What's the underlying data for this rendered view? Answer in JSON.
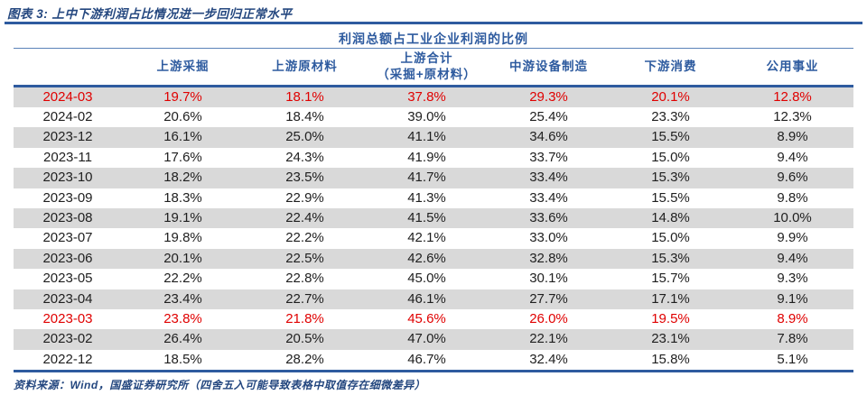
{
  "figure": {
    "title": "图表 3: 上中下游利润占比情况进一步回归正常水平",
    "source": "资料来源：Wind，国盛证券研究所（四舍五入可能导致表格中取值存在细微差异）"
  },
  "colors": {
    "accent_blue": "#2e5b9f",
    "title_blue": "#24477f",
    "highlight_red": "#e00000",
    "zebra_gray": "#d9d9d9",
    "body_text": "#1f1f1f"
  },
  "chart_data": {
    "type": "table",
    "title": "利润总额占工业企业利润的比例",
    "columns": [
      "",
      "上游采掘",
      "上游原材料",
      "上游合计\n（采掘+原材料）",
      "中游设备制造",
      "下游消费",
      "公用事业"
    ],
    "rows": [
      {
        "date": "2024-03",
        "values": [
          "19.7%",
          "18.1%",
          "37.8%",
          "29.3%",
          "20.1%",
          "12.8%"
        ],
        "red": true
      },
      {
        "date": "2024-02",
        "values": [
          "20.6%",
          "18.4%",
          "39.0%",
          "25.4%",
          "23.3%",
          "12.3%"
        ],
        "red": false
      },
      {
        "date": "2023-12",
        "values": [
          "16.1%",
          "25.0%",
          "41.1%",
          "34.6%",
          "15.5%",
          "8.9%"
        ],
        "red": false
      },
      {
        "date": "2023-11",
        "values": [
          "17.6%",
          "24.3%",
          "41.9%",
          "33.7%",
          "15.0%",
          "9.4%"
        ],
        "red": false
      },
      {
        "date": "2023-10",
        "values": [
          "18.2%",
          "23.5%",
          "41.7%",
          "33.4%",
          "15.3%",
          "9.6%"
        ],
        "red": false
      },
      {
        "date": "2023-09",
        "values": [
          "18.3%",
          "22.9%",
          "41.3%",
          "33.4%",
          "15.5%",
          "9.8%"
        ],
        "red": false
      },
      {
        "date": "2023-08",
        "values": [
          "19.1%",
          "22.4%",
          "41.5%",
          "33.6%",
          "14.8%",
          "10.0%"
        ],
        "red": false
      },
      {
        "date": "2023-07",
        "values": [
          "19.8%",
          "22.2%",
          "42.1%",
          "33.0%",
          "15.0%",
          "9.9%"
        ],
        "red": false
      },
      {
        "date": "2023-06",
        "values": [
          "20.1%",
          "22.5%",
          "42.6%",
          "32.8%",
          "15.3%",
          "9.4%"
        ],
        "red": false
      },
      {
        "date": "2023-05",
        "values": [
          "22.2%",
          "22.8%",
          "45.0%",
          "30.1%",
          "15.7%",
          "9.3%"
        ],
        "red": false
      },
      {
        "date": "2023-04",
        "values": [
          "23.4%",
          "22.7%",
          "46.1%",
          "27.7%",
          "17.1%",
          "9.1%"
        ],
        "red": false
      },
      {
        "date": "2023-03",
        "values": [
          "23.8%",
          "21.8%",
          "45.6%",
          "26.0%",
          "19.5%",
          "8.9%"
        ],
        "red": true
      },
      {
        "date": "2023-02",
        "values": [
          "26.4%",
          "20.5%",
          "47.0%",
          "22.1%",
          "23.1%",
          "7.8%"
        ],
        "red": false
      },
      {
        "date": "2022-12",
        "values": [
          "18.5%",
          "28.2%",
          "46.7%",
          "32.4%",
          "15.8%",
          "5.1%"
        ],
        "red": false
      }
    ]
  }
}
